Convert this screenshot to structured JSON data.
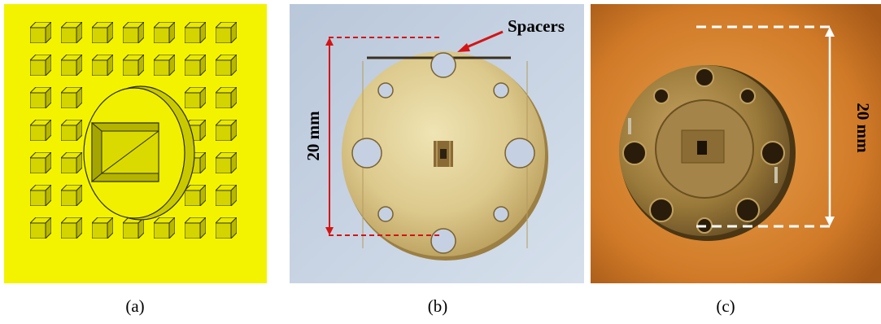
{
  "figure": {
    "panels": [
      {
        "id": "a",
        "caption": "(a)",
        "kind": "3D model rendering"
      },
      {
        "id": "b",
        "caption": "(b)",
        "kind": "photo"
      },
      {
        "id": "c",
        "caption": "(c)",
        "kind": "photo"
      }
    ],
    "annotations": {
      "spacers_label": "Spacers",
      "dimension_b": "20 mm",
      "dimension_c": "20 mm"
    },
    "colors": {
      "panel_a_background": "#f3f300",
      "cube_fill": "#d6d600",
      "dimension_b_color": "#d41414",
      "dimension_c_color": "#ffffff"
    }
  }
}
